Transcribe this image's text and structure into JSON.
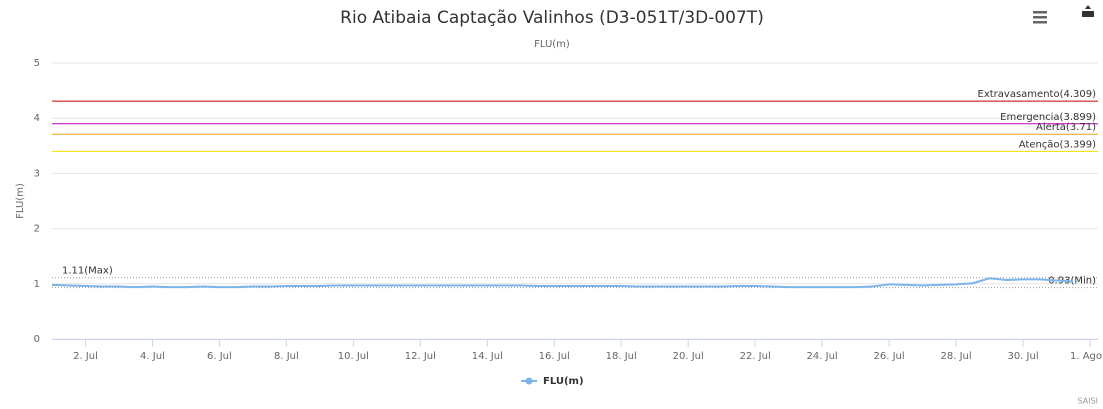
{
  "chart_data": {
    "type": "line",
    "title": "Rio Atibaia Captação Valinhos (D3-051T/3D-007T)",
    "subtitle": "FLU(m)",
    "y_axis_label": "FLU(m)",
    "credit": "SAISI",
    "grid": true,
    "xlim": [
      1,
      32
    ],
    "ylim": [
      0,
      5
    ],
    "yticks": [
      0,
      1,
      2,
      3,
      4,
      5
    ],
    "xticks": [
      {
        "value": 2,
        "label": "2. Jul"
      },
      {
        "value": 4,
        "label": "4. Jul"
      },
      {
        "value": 6,
        "label": "6. Jul"
      },
      {
        "value": 8,
        "label": "8. Jul"
      },
      {
        "value": 10,
        "label": "10. Jul"
      },
      {
        "value": 12,
        "label": "12. Jul"
      },
      {
        "value": 14,
        "label": "14. Jul"
      },
      {
        "value": 16,
        "label": "16. Jul"
      },
      {
        "value": 18,
        "label": "18. Jul"
      },
      {
        "value": 20,
        "label": "20. Jul"
      },
      {
        "value": 22,
        "label": "22. Jul"
      },
      {
        "value": 24,
        "label": "24. Jul"
      },
      {
        "value": 26,
        "label": "26. Jul"
      },
      {
        "value": 28,
        "label": "28. Jul"
      },
      {
        "value": 30,
        "label": "30. Jul"
      },
      {
        "value": 32,
        "label": "1. Ago"
      }
    ],
    "plot_lines": [
      {
        "label": "Extravasamento(4.309)",
        "value": 4.309,
        "color": "#c00000",
        "style": "solid",
        "align": "right"
      },
      {
        "label": "Emergencia(3.899)",
        "value": 3.899,
        "color": "#c000c0",
        "style": "solid",
        "align": "right"
      },
      {
        "label": "Alerta(3.71)",
        "value": 3.71,
        "color": "#f0a020",
        "style": "solid",
        "align": "right"
      },
      {
        "label": "Atenção(3.399)",
        "value": 3.399,
        "color": "#f0e000",
        "style": "solid",
        "align": "right"
      },
      {
        "label": "1.11(Max)",
        "value": 1.11,
        "color": "#999999",
        "style": "dotted",
        "align": "left"
      },
      {
        "label": "0.93(Min)",
        "value": 0.93,
        "color": "#999999",
        "style": "dotted",
        "align": "right"
      }
    ],
    "x": [
      1,
      1.5,
      2,
      2.5,
      3,
      3.5,
      4,
      4.5,
      5,
      5.5,
      6,
      6.5,
      7,
      7.5,
      8,
      8.5,
      9,
      9.5,
      10,
      10.5,
      11,
      11.5,
      12,
      12.5,
      13,
      13.5,
      14,
      14.5,
      15,
      15.5,
      16,
      16.5,
      17,
      17.5,
      18,
      18.5,
      19,
      19.5,
      20,
      20.5,
      21,
      21.5,
      22,
      22.5,
      23,
      23.5,
      24,
      24.5,
      25,
      25.5,
      26,
      26.5,
      27,
      27.5,
      28,
      28.5,
      29,
      29.5,
      30,
      30.5,
      31,
      31.5
    ],
    "series": [
      {
        "name": "FLU(m)",
        "color": "#7cb5ec",
        "values": [
          0.98,
          0.97,
          0.96,
          0.95,
          0.95,
          0.94,
          0.95,
          0.94,
          0.94,
          0.95,
          0.94,
          0.94,
          0.95,
          0.95,
          0.96,
          0.96,
          0.96,
          0.97,
          0.97,
          0.97,
          0.97,
          0.97,
          0.97,
          0.97,
          0.97,
          0.97,
          0.97,
          0.97,
          0.97,
          0.96,
          0.96,
          0.96,
          0.96,
          0.96,
          0.96,
          0.95,
          0.95,
          0.95,
          0.95,
          0.95,
          0.95,
          0.96,
          0.96,
          0.95,
          0.94,
          0.94,
          0.94,
          0.94,
          0.94,
          0.95,
          0.99,
          0.98,
          0.97,
          0.98,
          0.99,
          1.01,
          1.1,
          1.07,
          1.08,
          1.08,
          1.06,
          1.04
        ]
      }
    ]
  }
}
